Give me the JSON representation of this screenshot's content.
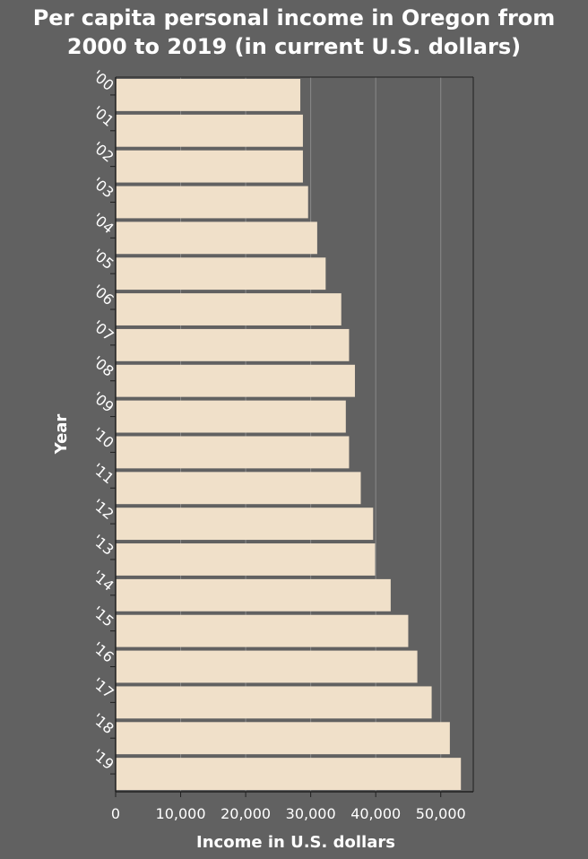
{
  "chart_data": {
    "type": "bar",
    "orientation": "horizontal",
    "title": "Per capita personal income in Oregon from 2000 to 2019 (in current U.S. dollars)",
    "title_lines": [
      "Per capita personal income in Oregon from",
      "2000 to 2019 (in current U.S. dollars)"
    ],
    "xlabel": "Income in U.S. dollars",
    "ylabel": "Year",
    "categories": [
      "'00",
      "'01",
      "'02",
      "'03",
      "'04",
      "'05",
      "'06",
      "'07",
      "'08",
      "'09",
      "'10",
      "'11",
      "'12",
      "'13",
      "'14",
      "'15",
      "'16",
      "'17",
      "'18",
      "'19"
    ],
    "values": [
      28400,
      28800,
      28800,
      29600,
      31000,
      32300,
      34700,
      35900,
      36800,
      35400,
      35900,
      37700,
      39600,
      39900,
      42300,
      45000,
      46400,
      48600,
      51400,
      53100
    ],
    "xlim": [
      0,
      55000
    ],
    "xticks": [
      0,
      10000,
      20000,
      30000,
      40000,
      50000
    ],
    "xtick_labels": [
      "0",
      "10,000",
      "20,000",
      "30,000",
      "40,000",
      "50,000"
    ],
    "grid": "vertical lines",
    "colors": {
      "background": "#616161",
      "bar": "#f0e0c9",
      "gridline": "#8a8a8a",
      "text": "#ffffff"
    }
  }
}
